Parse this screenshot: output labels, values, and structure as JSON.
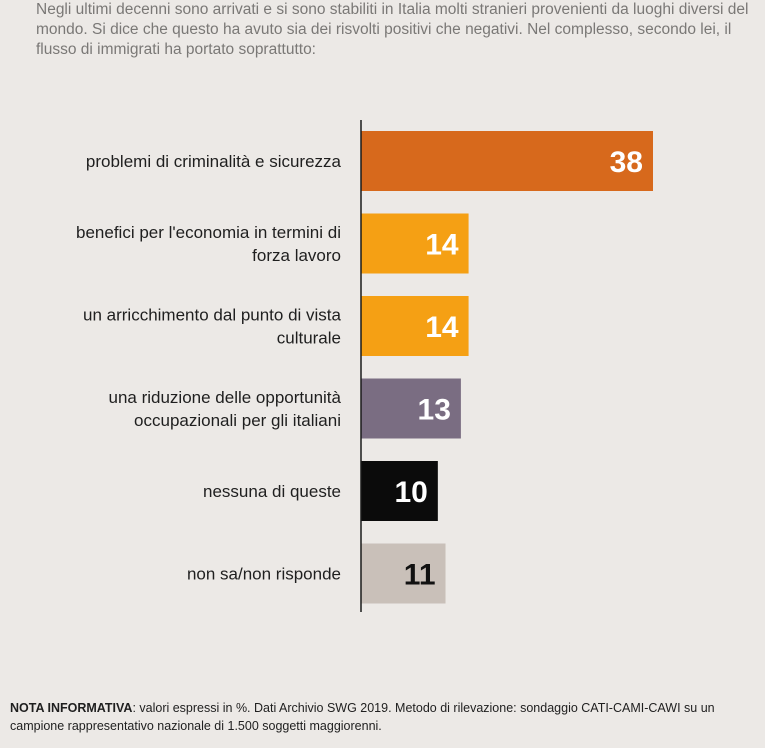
{
  "question": "Negli ultimi decenni sono arrivati e si sono stabiliti in Italia molti stranieri provenienti da luoghi diversi del mondo. Si dice che questo ha avuto sia dei risvolti positivi che negativi. Nel complesso, secondo lei, il flusso di immigrati ha portato soprattutto:",
  "note": {
    "label": "NOTA INFORMATIVA",
    "text": ": valori espressi in %. Dati Archivio SWG 2019. Metodo di rilevazione: sondaggio CATI-CAMI-CAWI su un campione rappresentativo nazionale di 1.500 soggetti maggiorenni."
  },
  "chart_data": {
    "type": "bar",
    "orientation": "horizontal",
    "categories": [
      [
        "problemi di criminalità e sicurezza"
      ],
      [
        "benefici per l'economia in termini di",
        "forza lavoro"
      ],
      [
        "un arricchimento dal punto di vista",
        "culturale"
      ],
      [
        "una riduzione delle opportunità",
        "occupazionali per gli italiani"
      ],
      [
        "nessuna di queste"
      ],
      [
        "non sa/non risponde"
      ]
    ],
    "values": [
      38,
      14,
      14,
      13,
      10,
      11
    ],
    "colors": [
      "#d7691c",
      "#f5a014",
      "#f5a014",
      "#7a6d82",
      "#0b0b0b",
      "#c9c0b9"
    ],
    "label_colors": [
      "#ffffff",
      "#ffffff",
      "#ffffff",
      "#ffffff",
      "#ffffff",
      "#111111"
    ],
    "unit": "%",
    "grid": false,
    "legend": "none"
  }
}
